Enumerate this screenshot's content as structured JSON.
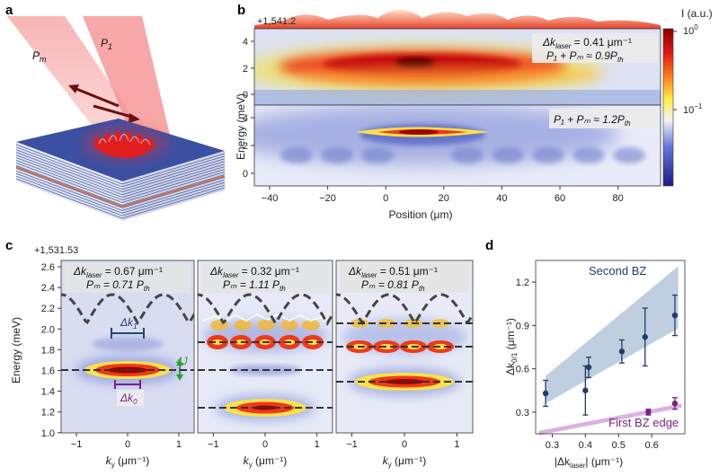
{
  "panel_labels": {
    "a": "a",
    "b": "b",
    "c": "c",
    "d": "d"
  },
  "panel_a": {
    "pump_m": "P",
    "pump_m_sub": "m",
    "pump_1": "P",
    "pump_1_sub": "1"
  },
  "panel_b": {
    "offset_label": "+1,541.2",
    "cbar_title": "I (a.u.)",
    "cbar_ticks": [
      "10",
      "10"
    ],
    "cbar_tick_exps": [
      "0",
      "−1"
    ],
    "ylabel": "Energy (meV)",
    "xlabel": "Position (μm)",
    "xticks": [
      "−40",
      "−20",
      "0",
      "20",
      "40",
      "60",
      "80"
    ],
    "yticks_top": [
      "4",
      "2",
      "0"
    ],
    "yticks_bottom": [
      "4",
      "2",
      "0"
    ],
    "annot_top_line1": "Δk",
    "annot_top_sub1": "laser",
    "annot_top_val1": " = 0.41 μm⁻¹",
    "annot_top_line2": "P₁ + Pₘ ≈ 0.9P",
    "annot_top_sub2": "th",
    "annot_bottom": "P₁ + Pₘ ≈ 1.2P",
    "annot_bottom_sub": "th"
  },
  "panel_c": {
    "offset_label": "+1,531.53",
    "ylabel": "Energy (meV)",
    "yticks": [
      "2.6",
      "2.4",
      "2.2",
      "2.0",
      "1.8",
      "1.6",
      "1.4",
      "1.2",
      "1.0"
    ],
    "xticks": [
      "−1",
      "0",
      "1"
    ],
    "xlabel": "k",
    "xlabel_sub": "y",
    "xlabel_unit": " (μm⁻¹)",
    "subpanels": [
      {
        "dk": "Δk",
        "dk_sub": "laser",
        "dk_val": " = 0.67 μm⁻¹",
        "pm": "Pₘ = 0.71 P",
        "pm_sub": "th"
      },
      {
        "dk": "Δk",
        "dk_sub": "laser",
        "dk_val": " = 0.32 μm⁻¹",
        "pm": "Pₘ = 1.11 P",
        "pm_sub": "th"
      },
      {
        "dk": "Δk",
        "dk_sub": "laser",
        "dk_val": " = 0.51 μm⁻¹",
        "pm": "Pₘ = 0.81 P",
        "pm_sub": "th"
      }
    ],
    "markers": {
      "dk1": "Δk",
      "dk1_sub": "1",
      "dk0": "Δk",
      "dk0_sub": "0",
      "fourj": "4J"
    }
  },
  "chart_data": {
    "type": "scatter",
    "title": "",
    "xlabel": "|Δk_laser| (μm⁻¹)",
    "ylabel": "Δk_0/1 (μm⁻¹)",
    "xlim": [
      0.25,
      0.7
    ],
    "ylim": [
      0.15,
      1.35
    ],
    "xticks": [
      "0.3",
      "0.4",
      "0.5",
      "0.6"
    ],
    "yticks": [
      "0.3",
      "0.6",
      "0.9",
      "1.2"
    ],
    "series": [
      {
        "name": "Second BZ",
        "color": "#1f3d6b",
        "x": [
          0.28,
          0.4,
          0.41,
          0.51,
          0.58,
          0.67
        ],
        "y": [
          0.43,
          0.45,
          0.61,
          0.72,
          0.82,
          0.97
        ],
        "err": [
          0.09,
          0.17,
          0.07,
          0.08,
          0.2,
          0.14
        ]
      },
      {
        "name": "First BZ edge",
        "color": "#7a1f86",
        "x": [
          0.59,
          0.67
        ],
        "y": [
          0.3,
          0.36
        ],
        "err": [
          0.02,
          0.04
        ]
      }
    ],
    "bands": {
      "second_bz_color": "#b8cadb",
      "first_bz_color": "#d9b3e0"
    }
  }
}
